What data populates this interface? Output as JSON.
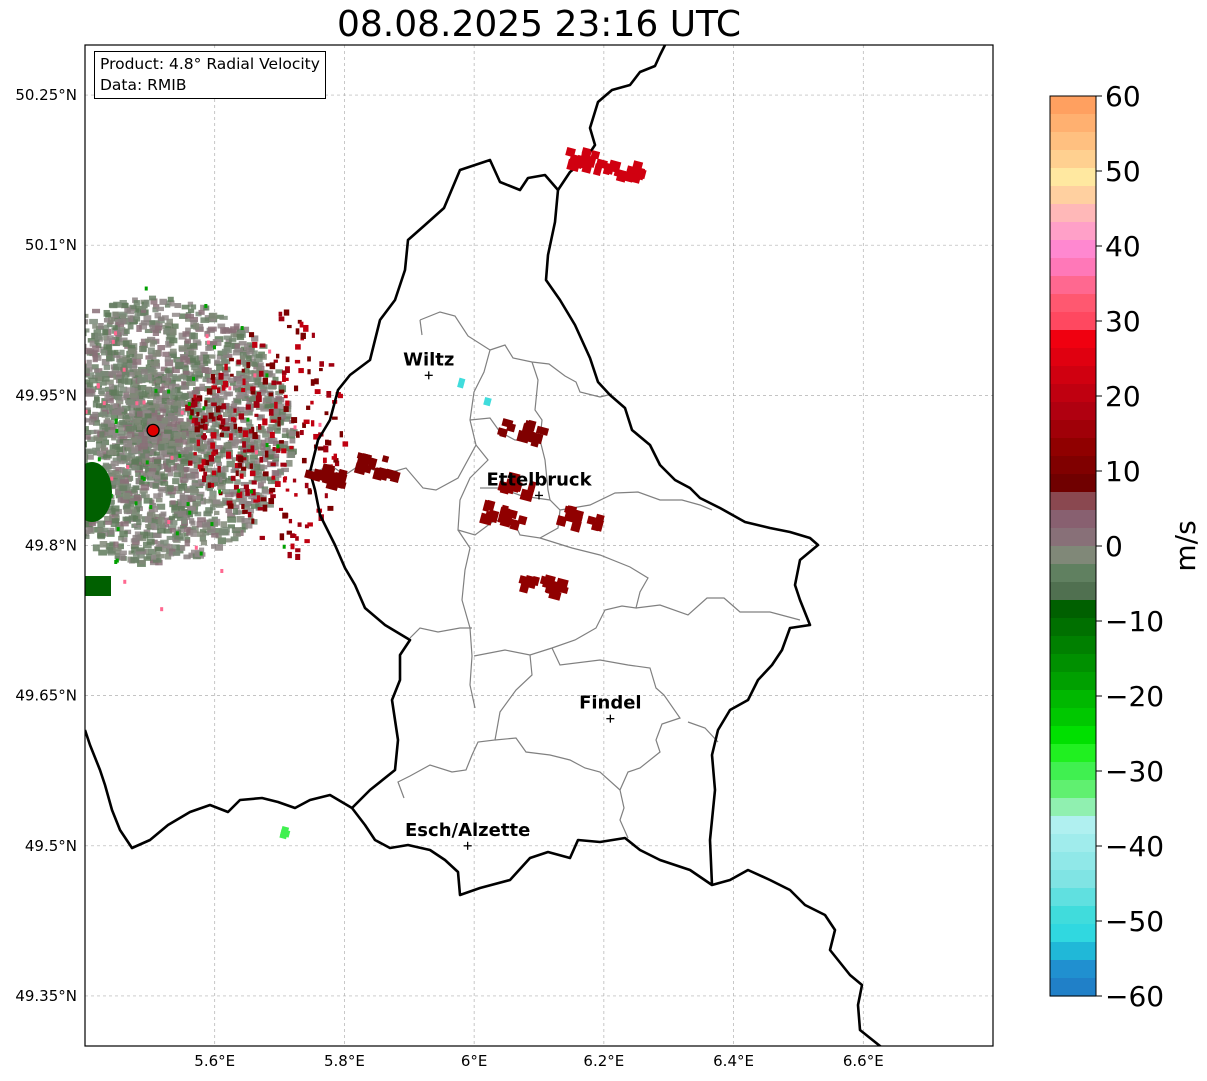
{
  "title": "08.08.2025 23:16 UTC",
  "info": {
    "product": "Product: 4.8° Radial Velocity",
    "data": "Data: RMIB"
  },
  "map": {
    "lon_range": [
      5.4,
      6.8
    ],
    "lat_range": [
      49.3,
      50.3
    ],
    "lat_ticks": [
      {
        "value": 50.25,
        "label": "50.25°N"
      },
      {
        "value": 50.1,
        "label": "50.1°N"
      },
      {
        "value": 49.95,
        "label": "49.95°N"
      },
      {
        "value": 49.8,
        "label": "49.8°N"
      },
      {
        "value": 49.65,
        "label": "49.65°N"
      },
      {
        "value": 49.5,
        "label": "49.5°N"
      },
      {
        "value": 49.35,
        "label": "49.35°N"
      }
    ],
    "lon_ticks": [
      {
        "value": 5.6,
        "label": "5.6°E"
      },
      {
        "value": 5.8,
        "label": "5.8°E"
      },
      {
        "value": 6.0,
        "label": "6°E"
      },
      {
        "value": 6.2,
        "label": "6.2°E"
      },
      {
        "value": 6.4,
        "label": "6.4°E"
      },
      {
        "value": 6.6,
        "label": "6.6°E"
      }
    ],
    "cities": [
      {
        "name": "Wiltz",
        "lon": 5.93,
        "lat": 49.97
      },
      {
        "name": "Ettelbruck",
        "lon": 6.1,
        "lat": 49.85
      },
      {
        "name": "Findel",
        "lon": 6.21,
        "lat": 49.627
      },
      {
        "name": "Esch/Alzette",
        "lon": 5.99,
        "lat": 49.5
      }
    ],
    "radar_site": {
      "lon": 5.505,
      "lat": 49.915,
      "color": "#e00000"
    }
  },
  "colorbar": {
    "label": "m/s",
    "ticks": [
      "60",
      "50",
      "40",
      "30",
      "20",
      "10",
      "0",
      "−10",
      "−20",
      "−30",
      "−40",
      "−50",
      "−60"
    ],
    "vmin": -60,
    "vmax": 60,
    "colors_top_to_bottom": [
      "#ffa060",
      "#ffb070",
      "#ffc080",
      "#ffd090",
      "#ffe8a0",
      "#ffd0a0",
      "#ffb8b8",
      "#ffa0c8",
      "#ff88d0",
      "#ff78b8",
      "#ff6890",
      "#ff5870",
      "#ff4860",
      "#f00010",
      "#e00010",
      "#d00010",
      "#c00010",
      "#b00010",
      "#a00008",
      "#900000",
      "#800000",
      "#700000",
      "#8a4850",
      "#886070",
      "#887078",
      "#808878",
      "#608060",
      "#507050",
      "#006000",
      "#007000",
      "#008000",
      "#009000",
      "#00a000",
      "#00b800",
      "#00c800",
      "#00e000",
      "#20f020",
      "#40f050",
      "#60f070",
      "#90f0b0",
      "#b0f0f0",
      "#a0ecec",
      "#90e8e8",
      "#80e4e4",
      "#60e0e0",
      "#40dcdc",
      "#30d8e0",
      "#20b8d8",
      "#2090d0",
      "#2080c8"
    ]
  },
  "chart_data": {
    "type": "map",
    "title": "08.08.2025 23:16 UTC",
    "colorbar_label": "m/s",
    "colorbar_range": [
      -60,
      60
    ],
    "xlim": [
      5.4,
      6.8
    ],
    "ylim": [
      49.3,
      50.3
    ],
    "cities": [
      "Wiltz",
      "Ettelbruck",
      "Findel",
      "Esch/Alzette"
    ],
    "velocity_cells": [
      {
        "lon": 6.17,
        "lat": 50.19,
        "value": 22
      },
      {
        "lon": 6.23,
        "lat": 50.18,
        "value": 22
      },
      {
        "lon": 5.85,
        "lat": 49.885,
        "value": 12
      },
      {
        "lon": 6.07,
        "lat": 49.865,
        "value": 14
      },
      {
        "lon": 6.04,
        "lat": 49.835,
        "value": 14
      },
      {
        "lon": 6.16,
        "lat": 49.83,
        "value": 14
      },
      {
        "lon": 6.1,
        "lat": 49.765,
        "value": 14
      },
      {
        "lon": 6.07,
        "lat": 49.92,
        "value": 12
      },
      {
        "lon": 5.765,
        "lat": 49.875,
        "value": 10
      },
      {
        "lon": 5.715,
        "lat": 49.51,
        "value": -30
      },
      {
        "lon": 5.99,
        "lat": 49.96,
        "value": -50
      }
    ]
  }
}
